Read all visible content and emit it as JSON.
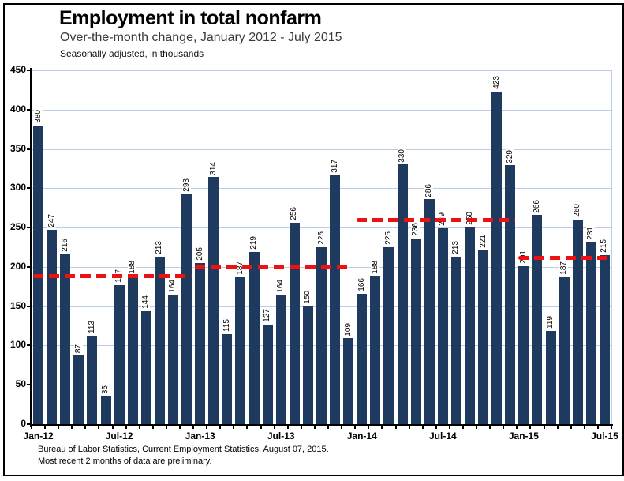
{
  "header": {
    "title": "Employment in total nonfarm",
    "subtitle": "Over-the-month change, January 2012 - July 2015",
    "note": "Seasonally adjusted, in thousands"
  },
  "footer": {
    "source": "Bureau of Labor Statistics, Current Employment Statistics, August 07, 2015.",
    "disclaimer": "Most recent 2 months of data are preliminary."
  },
  "chart_data": {
    "type": "bar",
    "title": "Employment in total nonfarm",
    "subtitle": "Over-the-month change, January 2012 - July 2015",
    "units": "Seasonally adjusted, in thousands",
    "categories": [
      "Jan-12",
      "Feb-12",
      "Mar-12",
      "Apr-12",
      "May-12",
      "Jun-12",
      "Jul-12",
      "Aug-12",
      "Sep-12",
      "Oct-12",
      "Nov-12",
      "Dec-12",
      "Jan-13",
      "Feb-13",
      "Mar-13",
      "Apr-13",
      "May-13",
      "Jun-13",
      "Jul-13",
      "Aug-13",
      "Sep-13",
      "Oct-13",
      "Nov-13",
      "Dec-13",
      "Jan-14",
      "Feb-14",
      "Mar-14",
      "Apr-14",
      "May-14",
      "Jun-14",
      "Jul-14",
      "Aug-14",
      "Sep-14",
      "Oct-14",
      "Nov-14",
      "Dec-14",
      "Jan-15",
      "Feb-15",
      "Mar-15",
      "Apr-15",
      "May-15",
      "Jun-15",
      "Jul-15"
    ],
    "values": [
      380,
      247,
      216,
      87,
      113,
      35,
      177,
      188,
      144,
      213,
      164,
      293,
      205,
      314,
      115,
      187,
      219,
      127,
      164,
      256,
      150,
      225,
      317,
      109,
      166,
      188,
      225,
      330,
      236,
      286,
      249,
      213,
      250,
      221,
      423,
      329,
      201,
      266,
      119,
      187,
      260,
      231,
      215
    ],
    "x_tick_labels": [
      "Jan-12",
      "Jul-12",
      "Jan-13",
      "Jul-13",
      "Jan-14",
      "Jul-14",
      "Jan-15",
      "Jul-15"
    ],
    "ylim": [
      0,
      450
    ],
    "ytick_step": 50,
    "grid": true,
    "legend": "none",
    "bar_value_labels": "rotated-90",
    "colors": {
      "bar": "#1f3a5f",
      "gridline": "#b9cde4",
      "average_line": "#ee1111",
      "axis": "#000000"
    },
    "average_lines": [
      {
        "period": "2012",
        "value": 188,
        "start_month": "Jan-12",
        "end_month": "Dec-12"
      },
      {
        "period": "2013",
        "value": 199,
        "start_month": "Jan-13",
        "end_month": "Dec-13"
      },
      {
        "period": "2014",
        "value": 260,
        "start_month": "Jan-14",
        "end_month": "Dec-14"
      },
      {
        "period": "2015",
        "value": 211,
        "start_month": "Jan-15",
        "end_month": "Jul-15"
      }
    ]
  }
}
